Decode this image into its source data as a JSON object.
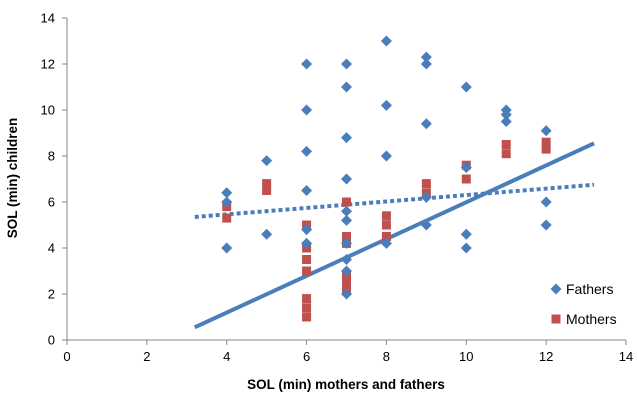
{
  "chart_data": {
    "type": "scatter",
    "xlabel": "SOL (min) mothers and fathers",
    "ylabel": "SOL (min) children",
    "xlim": [
      0,
      14
    ],
    "ylim": [
      0,
      14
    ],
    "xticks": [
      0,
      2,
      4,
      6,
      8,
      10,
      12,
      14
    ],
    "yticks": [
      0,
      2,
      4,
      6,
      8,
      10,
      12,
      14
    ],
    "grid": false,
    "legend_position": "bottom-right",
    "series": [
      {
        "name": "Fathers",
        "marker": "diamond",
        "color": "#4A7EBB",
        "points": [
          [
            4,
            6.4
          ],
          [
            4,
            6
          ],
          [
            4,
            4
          ],
          [
            5,
            7.8
          ],
          [
            5,
            4.6
          ],
          [
            6,
            12
          ],
          [
            6,
            10
          ],
          [
            6,
            8.2
          ],
          [
            6,
            6.5
          ],
          [
            6,
            4.8
          ],
          [
            6,
            4.2
          ],
          [
            7,
            12
          ],
          [
            7,
            11
          ],
          [
            7,
            8.8
          ],
          [
            7,
            7
          ],
          [
            7,
            5.6
          ],
          [
            7,
            5.2
          ],
          [
            7,
            4.2
          ],
          [
            7,
            3.5
          ],
          [
            7,
            3
          ],
          [
            7,
            2
          ],
          [
            8,
            13
          ],
          [
            8,
            10.2
          ],
          [
            8,
            8
          ],
          [
            8,
            4.2
          ],
          [
            9,
            12.3
          ],
          [
            9,
            12
          ],
          [
            9,
            9.4
          ],
          [
            9,
            6.2
          ],
          [
            9,
            5
          ],
          [
            10,
            11
          ],
          [
            10,
            7.5
          ],
          [
            10,
            4.6
          ],
          [
            10,
            4
          ],
          [
            11,
            10
          ],
          [
            11,
            9.8
          ],
          [
            11,
            9.5
          ],
          [
            12,
            9.1
          ],
          [
            12,
            6
          ],
          [
            12,
            5
          ]
        ]
      },
      {
        "name": "Mothers",
        "marker": "square",
        "color": "#C0504D",
        "points": [
          [
            4,
            5.8
          ],
          [
            4,
            5.3
          ],
          [
            5,
            6.8
          ],
          [
            5,
            6.5
          ],
          [
            6,
            5
          ],
          [
            6,
            4
          ],
          [
            6,
            3.5
          ],
          [
            6,
            3
          ],
          [
            6,
            1.8
          ],
          [
            6,
            1.4
          ],
          [
            6,
            1
          ],
          [
            7,
            6
          ],
          [
            7,
            4.5
          ],
          [
            7,
            4.2
          ],
          [
            7,
            2.8
          ],
          [
            7,
            2.5
          ],
          [
            7,
            2.2
          ],
          [
            8,
            5.4
          ],
          [
            8,
            5
          ],
          [
            8,
            4.5
          ],
          [
            9,
            6.8
          ],
          [
            9,
            6.4
          ],
          [
            10,
            7.6
          ],
          [
            10,
            7
          ],
          [
            11,
            8.5
          ],
          [
            11,
            8.1
          ],
          [
            12,
            8.6
          ],
          [
            12,
            8.3
          ]
        ]
      }
    ],
    "trendlines": [
      {
        "series": "Fathers",
        "style": "dotted",
        "color": "#4A7EBB",
        "from": [
          3.2,
          5.35
        ],
        "to": [
          13.2,
          6.75
        ]
      },
      {
        "series": "Mothers",
        "style": "solid",
        "color": "#4A7EBB",
        "from": [
          3.2,
          0.55
        ],
        "to": [
          13.2,
          8.55
        ]
      }
    ]
  }
}
